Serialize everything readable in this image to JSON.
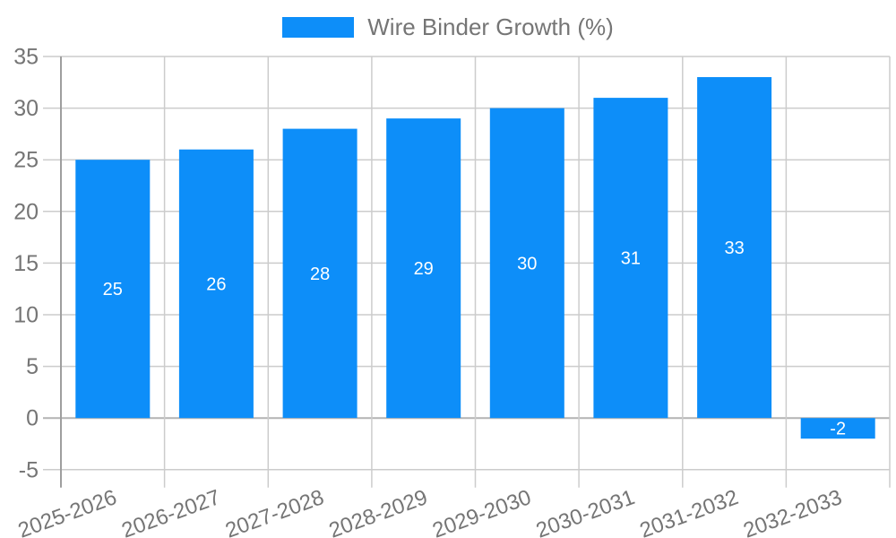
{
  "legend": {
    "position": "top"
  },
  "colors": {
    "bar": "#0d8ef9",
    "grid": "#cccccc",
    "zero_line": "#b3b3b3",
    "axis_line": "#9e9e9e",
    "tick_label": "#757575",
    "value_label": "#ffffff",
    "background": "#ffffff"
  },
  "chart_data": {
    "type": "bar",
    "title": "Wire Binder Growth (%)",
    "categories": [
      "2025-2026",
      "2026-2027",
      "2027-2028",
      "2028-2029",
      "2029-2030",
      "2030-2031",
      "2031-2032",
      "2032-2033"
    ],
    "values": [
      25,
      26,
      28,
      29,
      30,
      31,
      33,
      -2
    ],
    "series": [
      {
        "name": "Wire Binder Growth (%)",
        "values": [
          25,
          26,
          28,
          29,
          30,
          31,
          33,
          -2
        ]
      }
    ],
    "xlabel": "",
    "ylabel": "",
    "ylim": [
      -5,
      35
    ],
    "ytick_step": 5,
    "yticks": [
      -5,
      0,
      5,
      10,
      15,
      20,
      25,
      30,
      35
    ],
    "grid": true,
    "bar_labels_inside": true,
    "legend_position": "top",
    "x_label_rotation_deg": -20
  }
}
